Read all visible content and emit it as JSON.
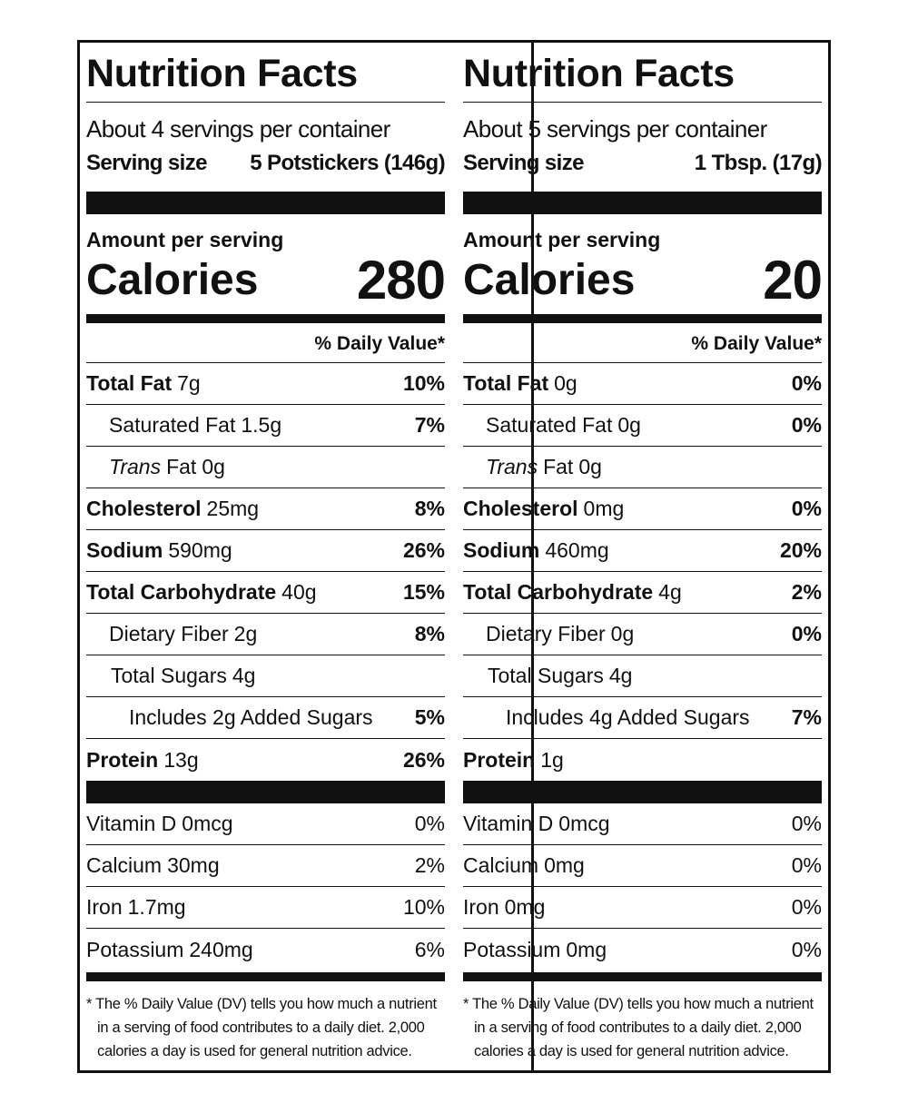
{
  "panels": [
    {
      "title": "Nutrition Facts",
      "servings": "About 4 servings per container",
      "serving_size_label": "Serving size",
      "serving_size_value": "5 Potstickers (146g)",
      "amount_per_serving": "Amount per serving",
      "calories_label": "Calories",
      "calories": "280",
      "daily_value_header": "% Daily Value*",
      "nutrients": [
        {
          "name": "Total Fat",
          "amount": "7g",
          "dv": "10%"
        },
        {
          "name": "Saturated Fat",
          "amount": "1.5g",
          "dv": "7%"
        },
        {
          "name": "Trans",
          "name_rest": "Fat",
          "amount": "0g"
        },
        {
          "name": "Cholesterol",
          "amount": "25mg",
          "dv": "8%"
        },
        {
          "name": "Sodium",
          "amount": "590mg",
          "dv": "26%"
        },
        {
          "name": "Total Carbohydrate",
          "amount": "40g",
          "dv": "15%"
        },
        {
          "name": "Dietary Fiber",
          "amount": "2g",
          "dv": "8%"
        },
        {
          "name": "Total Sugars",
          "amount": "4g"
        },
        {
          "name": "Includes 2g Added Sugars",
          "dv": "5%"
        },
        {
          "name": "Protein",
          "amount": "13g",
          "dv": "26%"
        }
      ],
      "vitamins": [
        {
          "name": "Vitamin D",
          "amount": "0mcg",
          "dv": "0%"
        },
        {
          "name": "Calcium",
          "amount": "30mg",
          "dv": "2%"
        },
        {
          "name": "Iron",
          "amount": "1.7mg",
          "dv": "10%"
        },
        {
          "name": "Potassium",
          "amount": "240mg",
          "dv": "6%"
        }
      ],
      "footnote": [
        "* The % Daily Value (DV) tells you how much a nutrient",
        "in a serving of food contributes to a daily diet. 2,000",
        "calories a day is used for general nutrition advice."
      ]
    },
    {
      "title": "Nutrition Facts",
      "servings": "About 5 servings per container",
      "serving_size_label": "Serving size",
      "serving_size_value": "1 Tbsp. (17g)",
      "amount_per_serving": "Amount per serving",
      "calories_label": "Calories",
      "calories": "20",
      "daily_value_header": "% Daily Value*",
      "nutrients": [
        {
          "name": "Total Fat",
          "amount": "0g",
          "dv": "0%"
        },
        {
          "name": "Saturated Fat",
          "amount": "0g",
          "dv": "0%"
        },
        {
          "name": "Trans",
          "name_rest": "Fat",
          "amount": "0g"
        },
        {
          "name": "Cholesterol",
          "amount": "0mg",
          "dv": "0%"
        },
        {
          "name": "Sodium",
          "amount": "460mg",
          "dv": "20%"
        },
        {
          "name": "Total Carbohydrate",
          "amount": "4g",
          "dv": "2%"
        },
        {
          "name": "Dietary Fiber",
          "amount": "0g",
          "dv": "0%"
        },
        {
          "name": "Total Sugars",
          "amount": "4g"
        },
        {
          "name": "Includes 4g Added Sugars",
          "dv": "7%"
        },
        {
          "name": "Protein",
          "amount": "1g"
        }
      ],
      "vitamins": [
        {
          "name": "Vitamin D",
          "amount": "0mcg",
          "dv": "0%"
        },
        {
          "name": "Calcium",
          "amount": "0mg",
          "dv": "0%"
        },
        {
          "name": "Iron",
          "amount": "0mg",
          "dv": "0%"
        },
        {
          "name": "Potassium",
          "amount": "0mg",
          "dv": "0%"
        }
      ],
      "footnote": [
        "* The % Daily Value (DV) tells you how much a nutrient",
        "in a serving of food contributes to a daily diet. 2,000",
        "calories a day is used for general nutrition advice."
      ]
    }
  ]
}
